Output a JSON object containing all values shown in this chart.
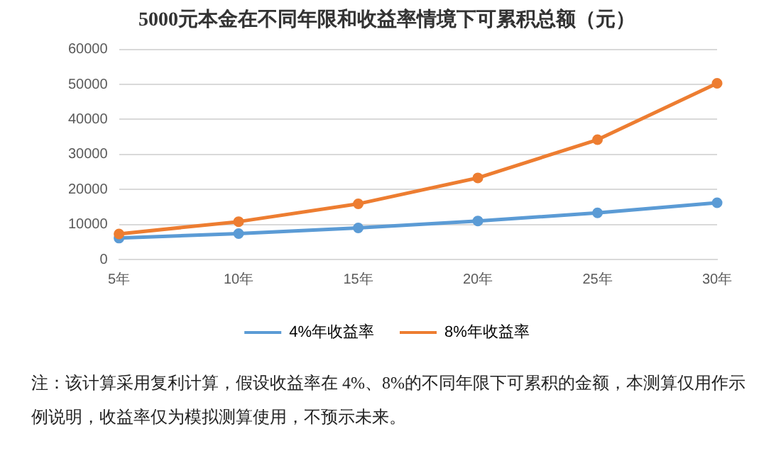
{
  "chart_data": {
    "type": "line",
    "title": "5000元本金在不同年限和收益率情境下可累积总额（元）",
    "categories": [
      "5年",
      "10年",
      "15年",
      "20年",
      "25年",
      "30年"
    ],
    "series": [
      {
        "name": "4%年收益率",
        "color": "#5b9bd5",
        "values": [
          6100,
          7400,
          9000,
          11000,
          13300,
          16200
        ]
      },
      {
        "name": "8%年收益率",
        "color": "#ed7d31",
        "values": [
          7300,
          10800,
          15900,
          23300,
          34200,
          50300
        ]
      }
    ],
    "ylim": [
      0,
      60000
    ],
    "yticks": [
      0,
      10000,
      20000,
      30000,
      40000,
      50000,
      60000
    ],
    "grid": "y",
    "legend": "bottom",
    "marker": "circle",
    "line_style": "solid",
    "annotations": [
      "注：该计算采用复利计算，假设收益率在 4%、8%的不同年限下可累积的金额，本测算仅用作示例说明，收益率仅为模拟测算使用，不预示未来。"
    ]
  }
}
